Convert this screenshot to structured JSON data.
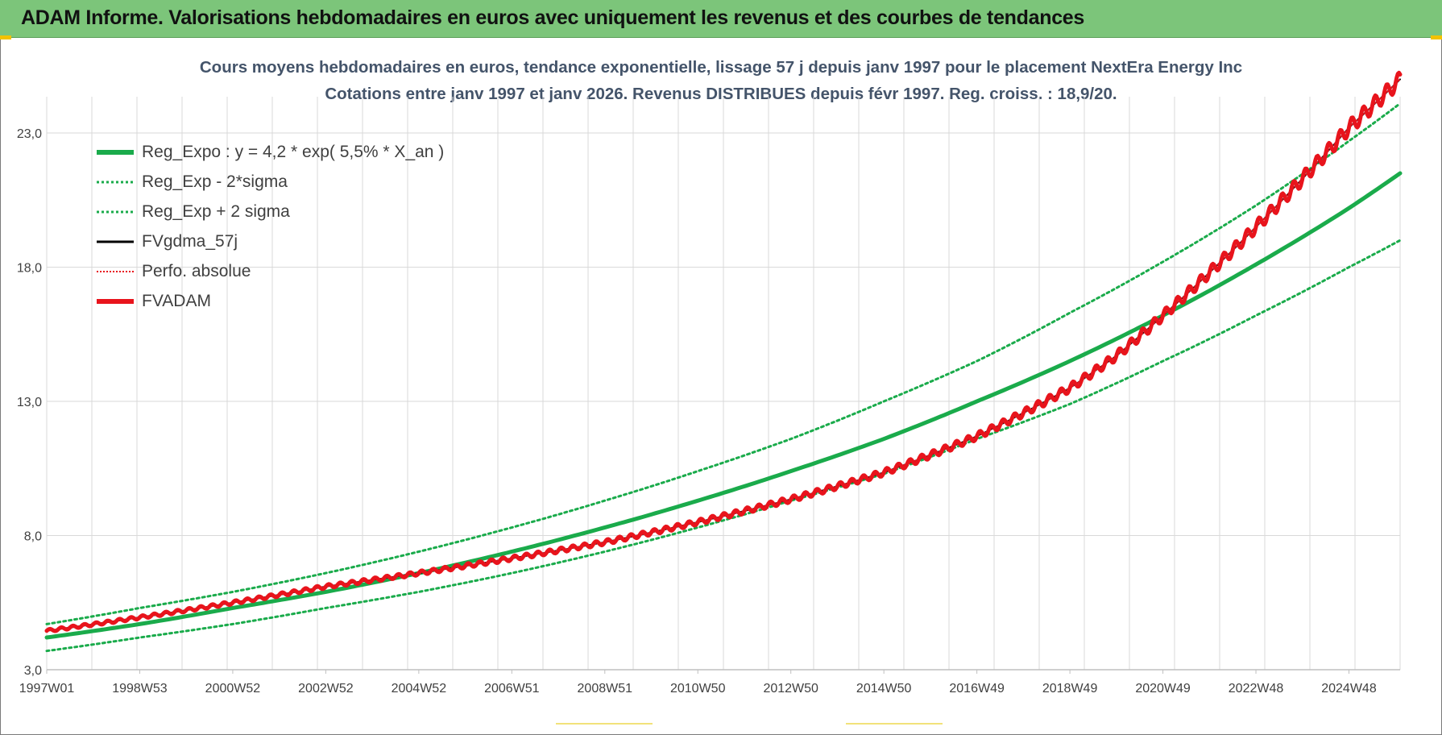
{
  "header": {
    "title": "ADAM Informe. Valorisations hebdomadaires en euros avec uniquement les revenus et des courbes de tendances"
  },
  "colors": {
    "banner": "#7cc57a",
    "green": "#1aab4b",
    "red": "#e8141c",
    "black": "#000000",
    "grid": "#d9d9d9",
    "title_text": "#44546a"
  },
  "chart_data": {
    "type": "line",
    "title": "Cours moyens hebdomadaires en euros, tendance exponentielle, lissage 57 j depuis janv 1997 pour le placement NextEra Energy Inc",
    "subtitle": "Cotations entre janv 1997 et janv 2026. Revenus DISTRIBUES depuis févr 1997. Reg. croiss. : 18,9/20.",
    "xlabel": "",
    "ylabel": "",
    "ylim": [
      3.0,
      24.9
    ],
    "yticks": [
      "3,0",
      "8,0",
      "13,0",
      "18,0",
      "23,0"
    ],
    "ytick_values": [
      3,
      8,
      13,
      18,
      23
    ],
    "xlim": [
      1997.0,
      2026.1
    ],
    "xtick_labels": [
      "1997W01",
      "1998W53",
      "2000W52",
      "2002W52",
      "2004W52",
      "2006W51",
      "2008W51",
      "2010W50",
      "2012W50",
      "2014W50",
      "2016W49",
      "2018W49",
      "2020W49",
      "2022W48",
      "2024W48"
    ],
    "xtick_years": [
      1997.0,
      1999.0,
      2001.0,
      2003.0,
      2005.0,
      2007.0,
      2009.0,
      2011.0,
      2013.0,
      2015.0,
      2017.0,
      2019.0,
      2021.0,
      2023.0,
      2025.0
    ],
    "grid": true,
    "legend_position": "top-left",
    "series": [
      {
        "name": "Reg_Expo : y = 4,2 * exp( 5,5% *  X_an )",
        "style": "solid-thick",
        "color": "#1aab4b",
        "x": [
          1997,
          1999,
          2001,
          2003,
          2005,
          2007,
          2009,
          2011,
          2013,
          2015,
          2017,
          2019,
          2021,
          2023,
          2025,
          2026.1
        ],
        "values": [
          4.2,
          4.7,
          5.3,
          5.9,
          6.6,
          7.4,
          8.3,
          9.3,
          10.4,
          11.6,
          13.0,
          14.5,
          16.2,
          18.1,
          20.2,
          21.5
        ]
      },
      {
        "name": "Reg_Exp - 2*sigma",
        "style": "dotted",
        "color": "#1aab4b",
        "x": [
          1997,
          1999,
          2001,
          2003,
          2005,
          2007,
          2009,
          2011,
          2013,
          2015,
          2017,
          2019,
          2021,
          2023,
          2025,
          2026.1
        ],
        "values": [
          3.7,
          4.2,
          4.7,
          5.3,
          5.9,
          6.6,
          7.4,
          8.3,
          9.3,
          10.3,
          11.6,
          12.9,
          14.5,
          16.2,
          18.0,
          19.0
        ]
      },
      {
        "name": "Reg_Exp + 2 sigma",
        "style": "dotted",
        "color": "#1aab4b",
        "x": [
          1997,
          1999,
          2001,
          2003,
          2005,
          2007,
          2009,
          2011,
          2013,
          2015,
          2017,
          2019,
          2021,
          2023,
          2025,
          2026.1
        ],
        "values": [
          4.7,
          5.3,
          5.9,
          6.6,
          7.4,
          8.3,
          9.3,
          10.4,
          11.6,
          13.0,
          14.5,
          16.3,
          18.2,
          20.3,
          22.7,
          24.1
        ]
      },
      {
        "name": "FVgdma_57j",
        "style": "solid",
        "color": "#000000",
        "x": [
          1997,
          1999,
          2001,
          2003,
          2005,
          2007,
          2009,
          2011,
          2013,
          2015,
          2017,
          2019,
          2020,
          2021,
          2022,
          2023,
          2024,
          2025,
          2026.1
        ],
        "values": [
          4.45,
          4.95,
          5.5,
          6.1,
          6.6,
          7.15,
          7.75,
          8.5,
          9.35,
          10.35,
          11.7,
          13.5,
          14.7,
          16.2,
          17.8,
          19.5,
          21.3,
          23.2,
          25.0
        ]
      },
      {
        "name": "Perfo. absolue",
        "style": "dotted",
        "color": "#e8141c",
        "x": [
          1997,
          1999,
          2001,
          2003,
          2005,
          2007,
          2009,
          2011,
          2013,
          2015,
          2017,
          2019,
          2020,
          2021,
          2022,
          2023,
          2024,
          2025,
          2026.1
        ],
        "values": [
          4.45,
          4.95,
          5.5,
          6.1,
          6.6,
          7.15,
          7.75,
          8.5,
          9.35,
          10.35,
          11.7,
          13.5,
          14.7,
          16.2,
          17.8,
          19.5,
          21.3,
          23.2,
          25.0
        ]
      },
      {
        "name": "FVADAM",
        "style": "solid-thick",
        "color": "#e8141c",
        "x": [
          1997,
          1999,
          2001,
          2003,
          2005,
          2007,
          2009,
          2011,
          2013,
          2015,
          2017,
          2019,
          2020,
          2021,
          2022,
          2023,
          2024,
          2025,
          2026.1
        ],
        "values": [
          4.45,
          4.95,
          5.5,
          6.1,
          6.6,
          7.15,
          7.75,
          8.5,
          9.35,
          10.35,
          11.7,
          13.5,
          14.7,
          16.2,
          17.8,
          19.5,
          21.3,
          23.2,
          25.0
        ]
      }
    ]
  }
}
